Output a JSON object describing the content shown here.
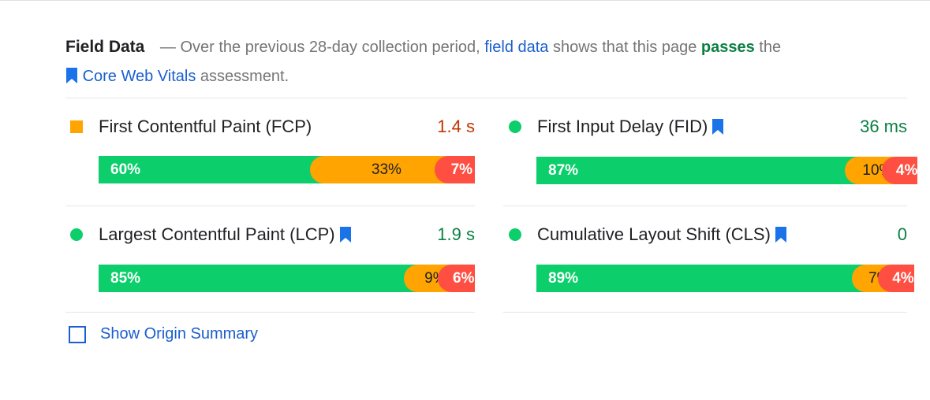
{
  "header": {
    "title": "Field Data",
    "dash_text": "— Over the previous 28-day collection period,",
    "field_data_link": "field data",
    "shows_text": "shows that this page",
    "passes": "passes",
    "the_text": "the",
    "cwv_link": "Core Web Vitals",
    "assessment_text": "assessment."
  },
  "colors": {
    "good": "#0cce6b",
    "needs_improvement": "#ffa400",
    "poor": "#ff4e42",
    "link": "#1a5fcd",
    "pass_text": "#0b8043"
  },
  "metrics": {
    "fcp": {
      "name": "First Contentful Paint (FCP)",
      "value": "1.4 s",
      "status": "average",
      "core_web_vital": false,
      "fast": "60%",
      "average": "33%",
      "slow": "7%",
      "fast_frac": 0.6,
      "average_frac": 0.33,
      "slow_frac": 0.07
    },
    "fid": {
      "name": "First Input Delay (FID)",
      "value": "36 ms",
      "status": "fast",
      "core_web_vital": true,
      "fast": "87%",
      "average": "10%",
      "slow": "4%",
      "fast_frac": 0.87,
      "average_frac": 0.1,
      "slow_frac": 0.04
    },
    "lcp": {
      "name": "Largest Contentful Paint (LCP)",
      "value": "1.9 s",
      "status": "fast",
      "core_web_vital": true,
      "fast": "85%",
      "average": "9%",
      "slow": "6%",
      "fast_frac": 0.85,
      "average_frac": 0.09,
      "slow_frac": 0.06
    },
    "cls": {
      "name": "Cumulative Layout Shift (CLS)",
      "value": "0",
      "status": "fast",
      "core_web_vital": true,
      "fast": "89%",
      "average": "7%",
      "slow": "4%",
      "fast_frac": 0.89,
      "average_frac": 0.07,
      "slow_frac": 0.04
    }
  },
  "origin_summary": {
    "label": "Show Origin Summary",
    "checked": false
  },
  "icons": {
    "bookmark": "bookmark-icon",
    "checkbox": "checkbox-icon"
  }
}
